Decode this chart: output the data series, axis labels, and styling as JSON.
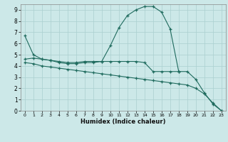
{
  "xlabel": "Humidex (Indice chaleur)",
  "xlim": [
    -0.5,
    23.5
  ],
  "ylim": [
    0,
    9.5
  ],
  "xticks": [
    0,
    1,
    2,
    3,
    4,
    5,
    6,
    7,
    8,
    9,
    10,
    11,
    12,
    13,
    14,
    15,
    16,
    17,
    18,
    19,
    20,
    21,
    22,
    23
  ],
  "yticks": [
    0,
    1,
    2,
    3,
    4,
    5,
    6,
    7,
    8,
    9
  ],
  "bg_color": "#cce8e8",
  "line_color": "#1f6b5e",
  "grid_color": "#aacfcf",
  "line1_x": [
    0,
    1,
    2,
    3,
    4,
    5,
    6,
    7,
    8,
    9,
    10,
    11,
    12,
    13,
    14,
    15,
    16,
    17,
    18
  ],
  "line1_y": [
    6.7,
    5.0,
    4.6,
    4.5,
    4.3,
    4.2,
    4.2,
    4.3,
    4.3,
    4.4,
    5.8,
    7.4,
    8.5,
    9.0,
    9.3,
    9.3,
    8.8,
    7.3,
    3.5
  ],
  "line2_x": [
    0,
    1,
    2,
    3,
    4,
    5,
    6,
    7,
    8,
    9,
    10,
    11,
    12,
    13,
    14,
    15,
    16,
    17,
    18,
    19,
    20,
    21,
    22,
    23
  ],
  "line2_y": [
    4.6,
    4.7,
    4.6,
    4.5,
    4.4,
    4.3,
    4.3,
    4.4,
    4.4,
    4.4,
    4.4,
    4.4,
    4.4,
    4.4,
    4.3,
    3.5,
    3.5,
    3.5,
    3.5,
    3.5,
    2.8,
    1.6,
    0.6,
    0.0
  ],
  "line3_x": [
    0,
    1,
    2,
    3,
    4,
    5,
    6,
    7,
    8,
    9,
    10,
    11,
    12,
    13,
    14,
    15,
    16,
    17,
    18,
    19,
    20,
    21,
    22,
    23
  ],
  "line3_y": [
    4.3,
    4.2,
    4.0,
    3.9,
    3.8,
    3.7,
    3.6,
    3.5,
    3.4,
    3.3,
    3.2,
    3.1,
    3.0,
    2.9,
    2.8,
    2.7,
    2.6,
    2.5,
    2.4,
    2.3,
    2.0,
    1.5,
    0.7,
    0.0
  ]
}
